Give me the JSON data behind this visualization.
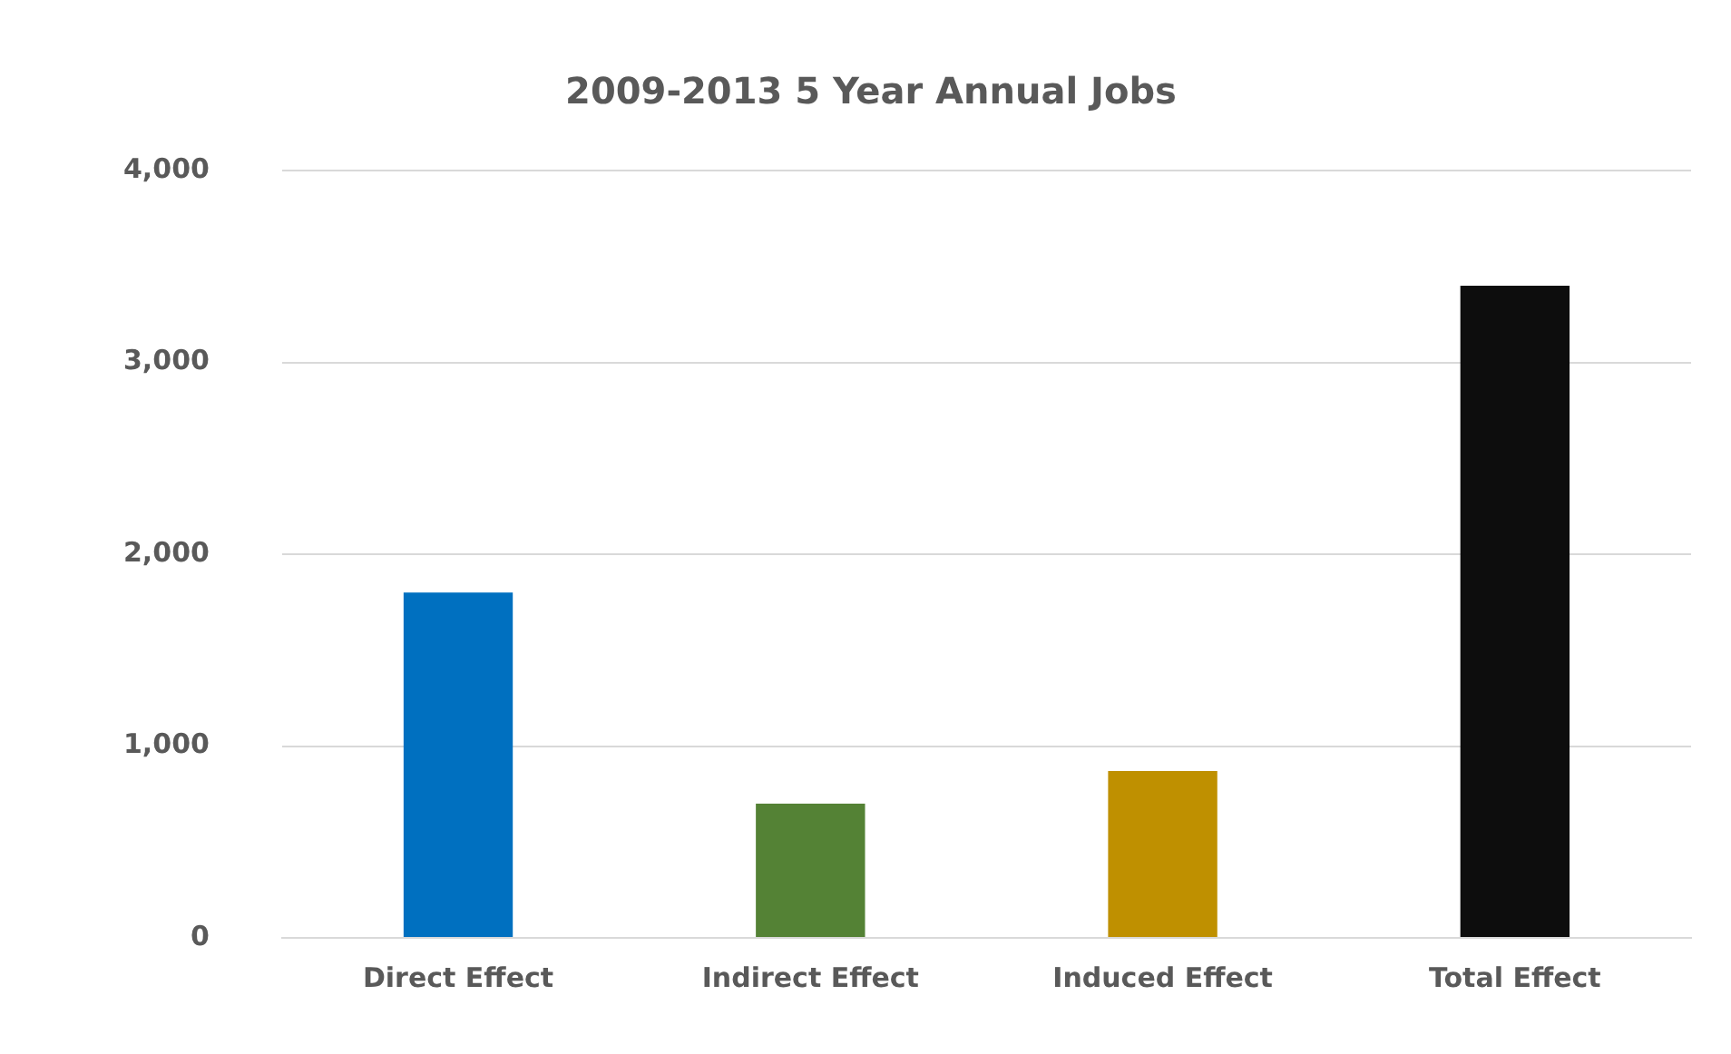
{
  "chart_data": {
    "type": "bar",
    "title": "2009-2013 5 Year Annual Jobs",
    "categories": [
      "Direct Effect",
      "Indirect Effect",
      "Induced Effect",
      "Total Effect"
    ],
    "values": [
      1800,
      700,
      870,
      3400
    ],
    "colors": [
      "#0070c0",
      "#548235",
      "#bf9000",
      "#0d0d0d"
    ],
    "ylim": [
      0,
      4000
    ],
    "yticks": [
      {
        "value": 0,
        "label": "0"
      },
      {
        "value": 1000,
        "label": "1,000"
      },
      {
        "value": 2000,
        "label": "2,000"
      },
      {
        "value": 3000,
        "label": "3,000"
      },
      {
        "value": 4000,
        "label": "4,000"
      }
    ],
    "grid": "y",
    "legend": false
  }
}
